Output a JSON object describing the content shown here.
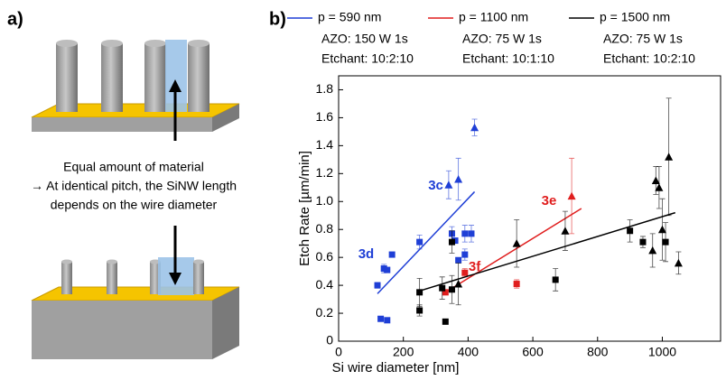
{
  "panel_a": {
    "label": "a)",
    "caption": [
      "Equal amount of material",
      "→ At identical pitch, the SiNW length",
      "depends on the wire diameter"
    ]
  },
  "chart_data": {
    "type": "scatter",
    "panel_label": "b)",
    "x_label": "Si wire diameter [nm]",
    "y_label": "Etch Rate [µm/min]",
    "xlim": [
      0,
      1180
    ],
    "xticks": [
      0,
      200,
      400,
      600,
      800,
      1000
    ],
    "ylim": [
      0,
      1.9
    ],
    "yticks": [
      0,
      0.2,
      0.4,
      0.6,
      0.8,
      {
        "value": 1,
        "label": "1.0"
      },
      1.2,
      1.4,
      1.6,
      1.8
    ],
    "series": [
      {
        "name": "p = 590 nm",
        "details": [
          "AZO: 150 W 1s",
          "Etchant: 10:2:10"
        ],
        "color": "#1f3fd6",
        "squares": {
          "x": [
            120,
            130,
            140,
            150,
            150,
            165,
            250,
            350,
            360,
            370,
            390,
            390,
            410
          ],
          "values": [
            0.4,
            0.16,
            0.52,
            0.15,
            0.51,
            0.62,
            0.71,
            0.77,
            0.72,
            0.58,
            0.77,
            0.62,
            0.77
          ],
          "errors": [
            0.02,
            null,
            0.03,
            null,
            null,
            null,
            0.05,
            0.05,
            null,
            null,
            0.06,
            0.04,
            0.06
          ]
        },
        "triangles": {
          "x": [
            340,
            370,
            420
          ],
          "values": [
            1.12,
            1.16,
            1.53
          ],
          "errors": [
            0.1,
            0.15,
            0.06
          ]
        },
        "fit": {
          "x": [
            120,
            420
          ],
          "values": [
            0.34,
            1.07
          ]
        }
      },
      {
        "name": "p = 1100 nm",
        "details": [
          "AZO: 75 W 1s",
          "Etchant: 10:1:10"
        ],
        "color": "#e01e1e",
        "squares": {
          "x": [
            330,
            390,
            550
          ],
          "values": [
            0.35,
            0.49,
            0.41
          ],
          "errors": [
            null,
            0.03,
            0.03
          ]
        },
        "triangles": {
          "x": [
            720
          ],
          "values": [
            1.04
          ],
          "errors": [
            0.27
          ]
        },
        "fit": {
          "x": [
            330,
            750
          ],
          "values": [
            0.35,
            0.95
          ]
        }
      },
      {
        "name": "p = 1500 nm",
        "details": [
          "AZO: 75 W 1s",
          "Etchant: 10:2:10"
        ],
        "color": "#000000",
        "squares": {
          "x": [
            250,
            250,
            320,
            330,
            350,
            350,
            670,
            900,
            940,
            1010
          ],
          "values": [
            0.22,
            0.35,
            0.38,
            0.14,
            0.71,
            0.37,
            0.44,
            0.79,
            0.71,
            0.71
          ],
          "errors": [
            0.04,
            0.1,
            0.08,
            null,
            0.08,
            0.1,
            0.08,
            0.08,
            0.04,
            0.14
          ]
        },
        "triangles": {
          "x": [
            370,
            550,
            700,
            970,
            980,
            990,
            1000,
            1020,
            1050
          ],
          "values": [
            0.41,
            0.7,
            0.79,
            0.65,
            1.15,
            1.1,
            0.8,
            1.32,
            0.56
          ],
          "errors": [
            0.15,
            0.17,
            0.14,
            0.12,
            0.1,
            0.15,
            0.22,
            0.42,
            0.08
          ]
        },
        "fit": {
          "x": [
            250,
            1040
          ],
          "values": [
            0.36,
            0.92
          ]
        }
      }
    ],
    "annotations": [
      {
        "text": "3c",
        "x": 300,
        "y": 1.11,
        "color": "#1f3fd6"
      },
      {
        "text": "3d",
        "x": 85,
        "y": 0.62,
        "color": "#1f3fd6"
      },
      {
        "text": "3e",
        "x": 650,
        "y": 1.0,
        "color": "#e01e1e"
      },
      {
        "text": "3f",
        "x": 420,
        "y": 0.53,
        "color": "#e01e1e"
      }
    ]
  }
}
